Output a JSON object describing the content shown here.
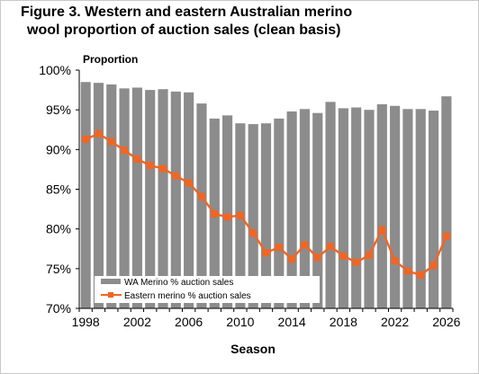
{
  "figure": {
    "title_line1": "Figure 3. Western  and eastern Australian merino",
    "title_line2": "wool proportion of auction sales (clean basis)"
  },
  "chart_data": {
    "type": "bar",
    "ylabel": "Proportion",
    "xlabel": "Season",
    "ylim": [
      70,
      100
    ],
    "y_ticks": [
      "70%",
      "75%",
      "80%",
      "85%",
      "90%",
      "95%",
      "100%"
    ],
    "x_ticks": [
      "1998",
      "2002",
      "2006",
      "2010",
      "2014",
      "2018",
      "2022",
      "2026"
    ],
    "x": [
      1998,
      1999,
      2000,
      2001,
      2002,
      2003,
      2004,
      2005,
      2006,
      2007,
      2008,
      2009,
      2010,
      2011,
      2012,
      2013,
      2014,
      2015,
      2016,
      2017,
      2018,
      2019,
      2020,
      2021,
      2022,
      2023,
      2024,
      2025,
      2026
    ],
    "series": [
      {
        "name": "WA Merino % auction sales",
        "type": "bar",
        "color": "#8c8c8c",
        "values": [
          98.5,
          98.4,
          98.2,
          97.7,
          97.8,
          97.5,
          97.6,
          97.3,
          97.2,
          95.8,
          93.9,
          94.3,
          93.3,
          93.2,
          93.3,
          93.9,
          94.8,
          95.1,
          94.6,
          96.0,
          95.2,
          95.3,
          95.0,
          95.7,
          95.5,
          95.1,
          95.1,
          94.9,
          96.7
        ]
      },
      {
        "name": "Eastern merino % auction sales",
        "type": "line",
        "color": "#f26522",
        "values": [
          91.3,
          92.0,
          91.0,
          89.9,
          88.8,
          88.0,
          87.6,
          86.7,
          85.8,
          84.1,
          81.9,
          81.5,
          81.7,
          79.5,
          77.0,
          77.7,
          76.2,
          78.0,
          76.4,
          77.8,
          76.6,
          75.8,
          76.7,
          79.9,
          76.0,
          74.7,
          74.2,
          75.4,
          79.1
        ]
      }
    ],
    "legend_position": "lower-left",
    "grid": false
  }
}
